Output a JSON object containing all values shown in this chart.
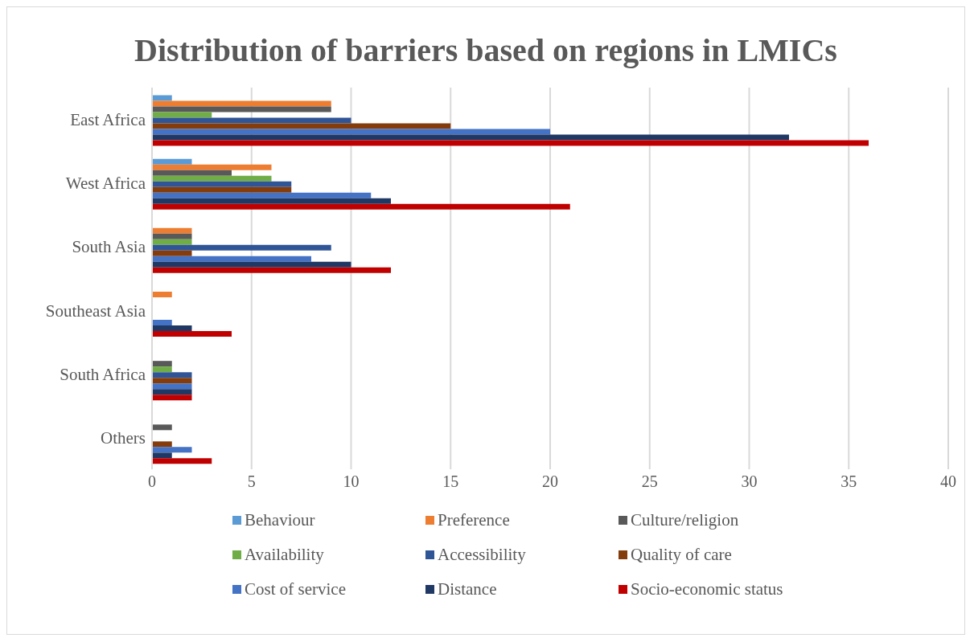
{
  "chart_data": {
    "type": "bar",
    "orientation": "horizontal",
    "title": "Distribution of barriers based on regions in LMICs",
    "categories": [
      "East Africa",
      "West Africa",
      "South Asia",
      "Southeast Asia",
      "South Africa",
      "Others"
    ],
    "series": [
      {
        "name": "Behaviour",
        "color": "#5b9bd5",
        "values": [
          1,
          2,
          0,
          0,
          0,
          0
        ]
      },
      {
        "name": "Preference",
        "color": "#ed7d31",
        "values": [
          9,
          6,
          2,
          1,
          0,
          0
        ]
      },
      {
        "name": "Culture/religion",
        "color": "#595959",
        "values": [
          9,
          4,
          2,
          0,
          1,
          1
        ]
      },
      {
        "name": "Availability",
        "color": "#70ad47",
        "values": [
          3,
          6,
          2,
          0,
          1,
          0
        ]
      },
      {
        "name": "Accessibility",
        "color": "#2f5597",
        "values": [
          10,
          7,
          9,
          0,
          2,
          0
        ]
      },
      {
        "name": "Quality of care",
        "color": "#843c0c",
        "values": [
          15,
          7,
          2,
          0,
          2,
          1
        ]
      },
      {
        "name": "Cost of service",
        "color": "#4472c4",
        "values": [
          20,
          11,
          8,
          1,
          2,
          2
        ]
      },
      {
        "name": "Distance",
        "color": "#203864",
        "values": [
          32,
          12,
          10,
          2,
          2,
          1
        ]
      },
      {
        "name": "Socio-economic status",
        "color": "#c00000",
        "values": [
          36,
          21,
          12,
          4,
          2,
          3
        ]
      }
    ],
    "xlim": [
      0,
      40
    ],
    "xticks": [
      0,
      5,
      10,
      15,
      20,
      25,
      30,
      35,
      40
    ],
    "grid": "x",
    "legend": "bottom"
  }
}
